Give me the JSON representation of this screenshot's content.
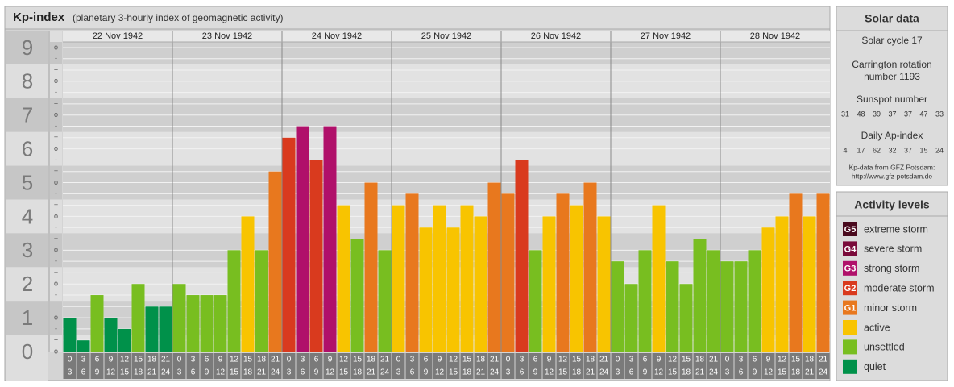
{
  "header": {
    "title": "Kp-index",
    "subtitle": "(planetary 3-hourly index of geomagnetic activity)"
  },
  "chart_data": {
    "type": "bar",
    "ylim": [
      0,
      9.5
    ],
    "yticks": [
      0,
      1,
      2,
      3,
      4,
      5,
      6,
      7,
      8,
      9
    ],
    "minor_yticks": [
      {
        "value": 9,
        "label": "o"
      },
      {
        "value": 8.67,
        "label": "-"
      },
      {
        "value": 8.33,
        "label": "+"
      },
      {
        "value": 8,
        "label": "o"
      },
      {
        "value": 7.67,
        "label": "-"
      },
      {
        "value": 7.33,
        "label": "+"
      },
      {
        "value": 7,
        "label": "o"
      },
      {
        "value": 6.67,
        "label": "-"
      },
      {
        "value": 6.33,
        "label": "+"
      },
      {
        "value": 6,
        "label": "o"
      },
      {
        "value": 5.67,
        "label": "-"
      },
      {
        "value": 5.33,
        "label": "+"
      },
      {
        "value": 5,
        "label": "o"
      },
      {
        "value": 4.67,
        "label": "-"
      },
      {
        "value": 4.33,
        "label": "+"
      },
      {
        "value": 4,
        "label": "o"
      },
      {
        "value": 3.67,
        "label": "-"
      },
      {
        "value": 3.33,
        "label": "+"
      },
      {
        "value": 3,
        "label": "o"
      },
      {
        "value": 2.67,
        "label": "-"
      },
      {
        "value": 2.33,
        "label": "+"
      },
      {
        "value": 2,
        "label": "o"
      },
      {
        "value": 1.67,
        "label": "-"
      },
      {
        "value": 1.33,
        "label": "+"
      },
      {
        "value": 1,
        "label": "o"
      },
      {
        "value": 0.67,
        "label": "-"
      },
      {
        "value": 0.33,
        "label": "+"
      },
      {
        "value": 0,
        "label": "o"
      }
    ],
    "time_slots": [
      [
        "0",
        "3"
      ],
      [
        "3",
        "6"
      ],
      [
        "6",
        "9"
      ],
      [
        "9",
        "12"
      ],
      [
        "12",
        "15"
      ],
      [
        "15",
        "18"
      ],
      [
        "18",
        "21"
      ],
      [
        "21",
        "24"
      ]
    ],
    "series": [
      {
        "name": "22 Nov 1942",
        "values": [
          1,
          0.33,
          1.67,
          1,
          0.67,
          2,
          1.33,
          1.33
        ],
        "colors": [
          "#00914a",
          "#00914a",
          "#78be20",
          "#00914a",
          "#00914a",
          "#78be20",
          "#00914a",
          "#00914a"
        ]
      },
      {
        "name": "23 Nov 1942",
        "values": [
          2,
          1.67,
          1.67,
          1.67,
          3,
          4,
          3,
          5.33
        ],
        "colors": [
          "#78be20",
          "#78be20",
          "#78be20",
          "#78be20",
          "#78be20",
          "#f8c400",
          "#78be20",
          "#e8781e"
        ]
      },
      {
        "name": "24 Nov 1942",
        "values": [
          6.33,
          6.67,
          5.67,
          6.67,
          4.33,
          3.33,
          5,
          3
        ],
        "colors": [
          "#d93a1e",
          "#b0106a",
          "#d93a1e",
          "#b0106a",
          "#f8c400",
          "#78be20",
          "#e8781e",
          "#78be20"
        ]
      },
      {
        "name": "25 Nov 1942",
        "values": [
          4.33,
          4.67,
          3.67,
          4.33,
          3.67,
          4.33,
          4,
          5
        ],
        "colors": [
          "#f8c400",
          "#e8781e",
          "#f8c400",
          "#f8c400",
          "#f8c400",
          "#f8c400",
          "#f8c400",
          "#e8781e"
        ]
      },
      {
        "name": "26 Nov 1942",
        "values": [
          4.67,
          5.67,
          3,
          4,
          4.67,
          4.33,
          5,
          4
        ],
        "colors": [
          "#e8781e",
          "#d93a1e",
          "#78be20",
          "#f8c400",
          "#e8781e",
          "#f8c400",
          "#e8781e",
          "#f8c400"
        ]
      },
      {
        "name": "27 Nov 1942",
        "values": [
          2.67,
          2,
          3,
          4.33,
          2.67,
          2,
          3.33,
          3
        ],
        "colors": [
          "#78be20",
          "#78be20",
          "#78be20",
          "#f8c400",
          "#78be20",
          "#78be20",
          "#78be20",
          "#78be20"
        ]
      },
      {
        "name": "28 Nov 1942",
        "values": [
          2.67,
          2.67,
          3,
          3.67,
          4,
          4.67,
          4,
          4.67
        ],
        "colors": [
          "#78be20",
          "#78be20",
          "#78be20",
          "#f8c400",
          "#f8c400",
          "#e8781e",
          "#f8c400",
          "#e8781e"
        ]
      }
    ]
  },
  "solar_data": {
    "title": "Solar data",
    "solar_cycle": "Solar cycle 17",
    "carrington": [
      "Carrington rotation",
      "number 1193"
    ],
    "sunspot_title": "Sunspot number",
    "sunspot_numbers": [
      31,
      48,
      39,
      37,
      37,
      47,
      33
    ],
    "ap_title": "Daily Ap-index",
    "ap_values": [
      4,
      17,
      62,
      32,
      37,
      15,
      24
    ],
    "source": "Kp-data from GFZ Potsdam:",
    "url": "http://www.gfz-potsdam.de"
  },
  "activity_levels": {
    "title": "Activity levels",
    "items": [
      {
        "badge": "G5",
        "label": "extreme storm",
        "color": "#4a0a1e"
      },
      {
        "badge": "G4",
        "label": "severe storm",
        "color": "#7a0a3a"
      },
      {
        "badge": "G3",
        "label": "strong storm",
        "color": "#b0106a"
      },
      {
        "badge": "G2",
        "label": "moderate storm",
        "color": "#d93a1e"
      },
      {
        "badge": "G1",
        "label": "minor storm",
        "color": "#e8781e"
      },
      {
        "label": "active",
        "color": "#f8c400"
      },
      {
        "label": "unsettled",
        "color": "#78be20"
      },
      {
        "label": "quiet",
        "color": "#00914a"
      }
    ]
  }
}
